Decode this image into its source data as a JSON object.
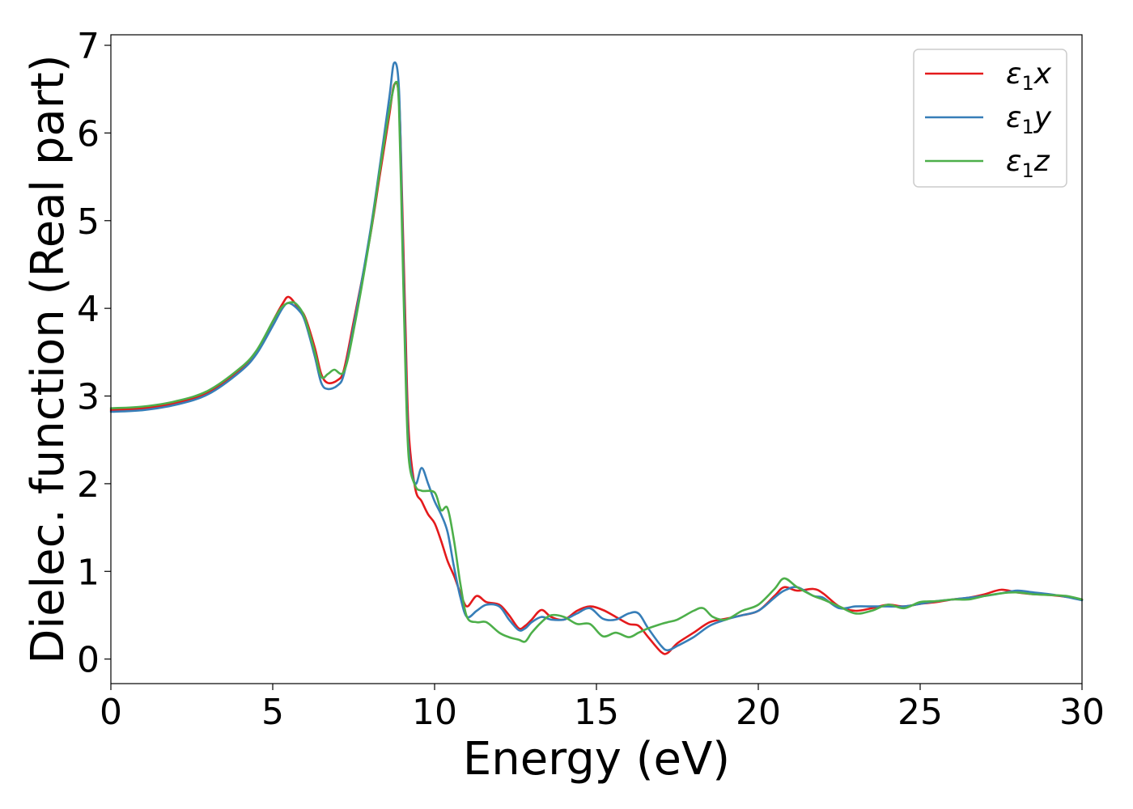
{
  "chart_data": {
    "type": "line",
    "title": "",
    "xlabel": "Energy (eV)",
    "ylabel": "Dielec. function (Real part)",
    "xlim": [
      0,
      30
    ],
    "ylim": [
      -0.28,
      7.12
    ],
    "xticks": [
      0,
      5,
      10,
      15,
      20,
      25,
      30
    ],
    "xtick_labels": [
      "0",
      "5",
      "10",
      "15",
      "20",
      "25",
      "30"
    ],
    "yticks": [
      0,
      1,
      2,
      3,
      4,
      5,
      6,
      7
    ],
    "ytick_labels": [
      "0",
      "1",
      "2",
      "3",
      "4",
      "5",
      "6",
      "7"
    ],
    "grid": false,
    "legend_position": "top-right",
    "series": [
      {
        "name": "ε₁x",
        "legend": {
          "symbol": "ε",
          "sub": "1",
          "var": "x"
        },
        "color": "#e41a1c",
        "points": [
          [
            0,
            2.84
          ],
          [
            1,
            2.86
          ],
          [
            2,
            2.92
          ],
          [
            3,
            3.04
          ],
          [
            4,
            3.3
          ],
          [
            4.5,
            3.5
          ],
          [
            5,
            3.85
          ],
          [
            5.3,
            4.05
          ],
          [
            5.5,
            4.13
          ],
          [
            5.8,
            4.0
          ],
          [
            6.0,
            3.9
          ],
          [
            6.3,
            3.55
          ],
          [
            6.5,
            3.25
          ],
          [
            6.7,
            3.15
          ],
          [
            7.0,
            3.18
          ],
          [
            7.2,
            3.3
          ],
          [
            7.5,
            3.85
          ],
          [
            8.0,
            4.8
          ],
          [
            8.3,
            5.5
          ],
          [
            8.6,
            6.2
          ],
          [
            8.75,
            6.55
          ],
          [
            8.9,
            6.4
          ],
          [
            9.0,
            5.2
          ],
          [
            9.1,
            3.8
          ],
          [
            9.2,
            2.6
          ],
          [
            9.4,
            1.95
          ],
          [
            9.6,
            1.8
          ],
          [
            9.8,
            1.65
          ],
          [
            10.0,
            1.55
          ],
          [
            10.2,
            1.35
          ],
          [
            10.4,
            1.12
          ],
          [
            10.6,
            0.95
          ],
          [
            10.8,
            0.75
          ],
          [
            11.0,
            0.6
          ],
          [
            11.3,
            0.72
          ],
          [
            11.6,
            0.65
          ],
          [
            12.0,
            0.62
          ],
          [
            12.3,
            0.5
          ],
          [
            12.6,
            0.35
          ],
          [
            12.8,
            0.38
          ],
          [
            13.0,
            0.45
          ],
          [
            13.3,
            0.56
          ],
          [
            13.6,
            0.48
          ],
          [
            14.0,
            0.45
          ],
          [
            14.4,
            0.55
          ],
          [
            14.8,
            0.6
          ],
          [
            15.2,
            0.56
          ],
          [
            15.6,
            0.48
          ],
          [
            16.0,
            0.4
          ],
          [
            16.3,
            0.38
          ],
          [
            16.6,
            0.25
          ],
          [
            17.0,
            0.08
          ],
          [
            17.2,
            0.07
          ],
          [
            17.5,
            0.18
          ],
          [
            18.0,
            0.3
          ],
          [
            18.5,
            0.42
          ],
          [
            19.0,
            0.46
          ],
          [
            19.5,
            0.5
          ],
          [
            20.0,
            0.55
          ],
          [
            20.5,
            0.72
          ],
          [
            20.8,
            0.82
          ],
          [
            21.2,
            0.78
          ],
          [
            21.7,
            0.8
          ],
          [
            22.0,
            0.75
          ],
          [
            22.5,
            0.6
          ],
          [
            23.0,
            0.55
          ],
          [
            23.5,
            0.58
          ],
          [
            24.0,
            0.62
          ],
          [
            24.5,
            0.6
          ],
          [
            25.0,
            0.63
          ],
          [
            25.5,
            0.65
          ],
          [
            26.0,
            0.68
          ],
          [
            26.5,
            0.7
          ],
          [
            27.0,
            0.74
          ],
          [
            27.5,
            0.79
          ],
          [
            28.0,
            0.76
          ],
          [
            28.5,
            0.74
          ],
          [
            29.0,
            0.73
          ],
          [
            29.5,
            0.71
          ],
          [
            30.0,
            0.68
          ]
        ]
      },
      {
        "name": "ε₁y",
        "legend": {
          "symbol": "ε",
          "sub": "1",
          "var": "y"
        },
        "color": "#377eb8",
        "points": [
          [
            0,
            2.82
          ],
          [
            1,
            2.84
          ],
          [
            2,
            2.9
          ],
          [
            3,
            3.02
          ],
          [
            4,
            3.28
          ],
          [
            4.5,
            3.48
          ],
          [
            5,
            3.8
          ],
          [
            5.3,
            4.0
          ],
          [
            5.5,
            4.06
          ],
          [
            5.8,
            3.98
          ],
          [
            6.0,
            3.85
          ],
          [
            6.3,
            3.45
          ],
          [
            6.5,
            3.15
          ],
          [
            6.7,
            3.08
          ],
          [
            7.0,
            3.12
          ],
          [
            7.2,
            3.25
          ],
          [
            7.5,
            3.8
          ],
          [
            8.0,
            4.85
          ],
          [
            8.3,
            5.6
          ],
          [
            8.6,
            6.4
          ],
          [
            8.75,
            6.8
          ],
          [
            8.9,
            6.5
          ],
          [
            9.0,
            5.0
          ],
          [
            9.1,
            3.5
          ],
          [
            9.2,
            2.4
          ],
          [
            9.4,
            2.0
          ],
          [
            9.6,
            2.18
          ],
          [
            9.8,
            2.0
          ],
          [
            10.0,
            1.8
          ],
          [
            10.2,
            1.65
          ],
          [
            10.4,
            1.45
          ],
          [
            10.6,
            1.05
          ],
          [
            10.8,
            0.7
          ],
          [
            11.0,
            0.48
          ],
          [
            11.3,
            0.55
          ],
          [
            11.6,
            0.62
          ],
          [
            12.0,
            0.6
          ],
          [
            12.3,
            0.45
          ],
          [
            12.6,
            0.33
          ],
          [
            12.8,
            0.35
          ],
          [
            13.0,
            0.42
          ],
          [
            13.3,
            0.48
          ],
          [
            13.6,
            0.45
          ],
          [
            14.0,
            0.45
          ],
          [
            14.4,
            0.52
          ],
          [
            14.8,
            0.58
          ],
          [
            15.2,
            0.46
          ],
          [
            15.6,
            0.45
          ],
          [
            16.0,
            0.52
          ],
          [
            16.3,
            0.52
          ],
          [
            16.6,
            0.35
          ],
          [
            17.0,
            0.15
          ],
          [
            17.2,
            0.1
          ],
          [
            17.5,
            0.15
          ],
          [
            18.0,
            0.25
          ],
          [
            18.5,
            0.38
          ],
          [
            19.0,
            0.45
          ],
          [
            19.5,
            0.5
          ],
          [
            20.0,
            0.55
          ],
          [
            20.5,
            0.7
          ],
          [
            20.8,
            0.78
          ],
          [
            21.2,
            0.82
          ],
          [
            21.7,
            0.72
          ],
          [
            22.0,
            0.7
          ],
          [
            22.5,
            0.58
          ],
          [
            23.0,
            0.6
          ],
          [
            23.5,
            0.6
          ],
          [
            24.0,
            0.6
          ],
          [
            24.5,
            0.6
          ],
          [
            25.0,
            0.63
          ],
          [
            25.5,
            0.66
          ],
          [
            26.0,
            0.68
          ],
          [
            26.5,
            0.7
          ],
          [
            27.0,
            0.72
          ],
          [
            27.5,
            0.75
          ],
          [
            28.0,
            0.78
          ],
          [
            28.5,
            0.76
          ],
          [
            29.0,
            0.74
          ],
          [
            29.5,
            0.71
          ],
          [
            30.0,
            0.67
          ]
        ]
      },
      {
        "name": "ε₁z",
        "legend": {
          "symbol": "ε",
          "sub": "1",
          "var": "z"
        },
        "color": "#4daf4a",
        "points": [
          [
            0,
            2.86
          ],
          [
            1,
            2.88
          ],
          [
            2,
            2.94
          ],
          [
            3,
            3.06
          ],
          [
            4,
            3.32
          ],
          [
            4.5,
            3.52
          ],
          [
            5,
            3.85
          ],
          [
            5.3,
            4.02
          ],
          [
            5.6,
            4.07
          ],
          [
            5.8,
            4.02
          ],
          [
            6.0,
            3.88
          ],
          [
            6.3,
            3.5
          ],
          [
            6.5,
            3.22
          ],
          [
            6.7,
            3.25
          ],
          [
            6.9,
            3.3
          ],
          [
            7.2,
            3.28
          ],
          [
            7.5,
            3.75
          ],
          [
            8.0,
            4.8
          ],
          [
            8.3,
            5.55
          ],
          [
            8.6,
            6.25
          ],
          [
            8.8,
            6.58
          ],
          [
            8.9,
            6.3
          ],
          [
            9.0,
            4.8
          ],
          [
            9.1,
            3.3
          ],
          [
            9.2,
            2.3
          ],
          [
            9.4,
            1.98
          ],
          [
            9.6,
            1.92
          ],
          [
            10.0,
            1.9
          ],
          [
            10.2,
            1.7
          ],
          [
            10.4,
            1.72
          ],
          [
            10.6,
            1.35
          ],
          [
            10.8,
            0.85
          ],
          [
            11.0,
            0.48
          ],
          [
            11.3,
            0.42
          ],
          [
            11.6,
            0.42
          ],
          [
            12.0,
            0.3
          ],
          [
            12.3,
            0.25
          ],
          [
            12.6,
            0.22
          ],
          [
            12.8,
            0.2
          ],
          [
            13.0,
            0.3
          ],
          [
            13.3,
            0.42
          ],
          [
            13.6,
            0.5
          ],
          [
            14.0,
            0.48
          ],
          [
            14.4,
            0.4
          ],
          [
            14.8,
            0.4
          ],
          [
            15.2,
            0.26
          ],
          [
            15.6,
            0.3
          ],
          [
            16.0,
            0.25
          ],
          [
            16.3,
            0.3
          ],
          [
            16.6,
            0.35
          ],
          [
            17.0,
            0.4
          ],
          [
            17.2,
            0.42
          ],
          [
            17.5,
            0.45
          ],
          [
            18.0,
            0.55
          ],
          [
            18.3,
            0.58
          ],
          [
            18.6,
            0.48
          ],
          [
            19.0,
            0.45
          ],
          [
            19.5,
            0.55
          ],
          [
            20.0,
            0.62
          ],
          [
            20.5,
            0.8
          ],
          [
            20.8,
            0.92
          ],
          [
            21.2,
            0.82
          ],
          [
            21.7,
            0.72
          ],
          [
            22.0,
            0.68
          ],
          [
            22.5,
            0.6
          ],
          [
            23.0,
            0.52
          ],
          [
            23.5,
            0.55
          ],
          [
            24.0,
            0.62
          ],
          [
            24.5,
            0.58
          ],
          [
            25.0,
            0.65
          ],
          [
            25.5,
            0.66
          ],
          [
            26.0,
            0.68
          ],
          [
            26.5,
            0.68
          ],
          [
            27.0,
            0.72
          ],
          [
            27.5,
            0.75
          ],
          [
            28.0,
            0.76
          ],
          [
            28.5,
            0.74
          ],
          [
            29.0,
            0.73
          ],
          [
            29.5,
            0.72
          ],
          [
            30.0,
            0.68
          ]
        ]
      }
    ]
  }
}
